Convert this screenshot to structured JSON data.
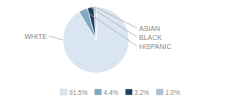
{
  "chart_data": {
    "type": "pie",
    "categories": [
      "WHITE",
      "HISPANIC",
      "BLACK",
      "ASIAN"
    ],
    "values": [
      91.5,
      4.4,
      3.2,
      1.0
    ],
    "value_labels": [
      "91.5%",
      "4.4%",
      "3.2%",
      "1.0%"
    ],
    "colors": [
      "#d9e5f0",
      "#7fa8c4",
      "#1e3f60",
      "#a8bfd4"
    ],
    "legend": "bottom"
  }
}
